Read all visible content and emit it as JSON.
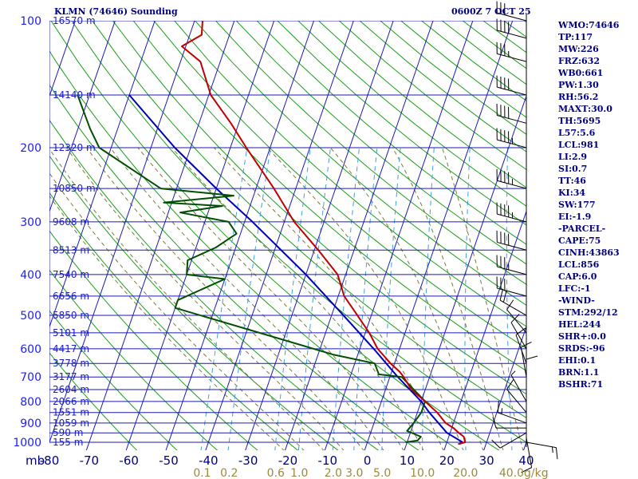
{
  "header": {
    "station": "KLMN (74646) Sounding",
    "valid_time": "0600Z  7 OCT 25"
  },
  "indices": [
    "WMO:74646",
    "TP:117",
    "MW:226",
    "FRZ:632",
    "WB0:661",
    "PW:1.30",
    "RH:56.2",
    "MAXT:30.0",
    "TH:5695",
    "L57:5.6",
    "LCL:981",
    "LI:2.9",
    "SI:0.7",
    "TT:46",
    "KI:34",
    "SW:177",
    "EI:-1.9",
    "-PARCEL-",
    "CAPE:75",
    "CINH:43863",
    "LCL:856",
    "CAP:6.0",
    "LFC:-1",
    "-WIND-",
    "STM:292/12",
    "HEL:244",
    "SHR+:0.0",
    "SRDS:-96",
    "EHI:0.1",
    "BRN:1.1",
    "BSHR:71"
  ],
  "colors": {
    "grid": "#1a1ab4",
    "dry_adiabat": "#1a9e1a",
    "moist_adiabat": "#7a7a3a",
    "mixing_ratio": "#3fa0e0",
    "temperature": "#c00000",
    "dewpoint": "#005000",
    "parcel": "#0000b4",
    "labels": "#000080"
  },
  "chart_data": {
    "type": "skew-t",
    "pressure_unit_label": "mb",
    "p_range": [
      1000,
      100
    ],
    "t_range_at_1000mb": [
      -80,
      40
    ],
    "pressure_levels": [
      100,
      200,
      300,
      400,
      500,
      600,
      700,
      800,
      900,
      1000
    ],
    "height_labels": [
      {
        "p": 100,
        "label": "16570 m"
      },
      {
        "p": 150,
        "label": "14140 m"
      },
      {
        "p": 200,
        "label": "12320 m"
      },
      {
        "p": 250,
        "label": "10850 m"
      },
      {
        "p": 300,
        "label": "9608 m"
      },
      {
        "p": 350,
        "label": "8513 m"
      },
      {
        "p": 400,
        "label": "7540 m"
      },
      {
        "p": 450,
        "label": "6656 m"
      },
      {
        "p": 500,
        "label": "5850 m"
      },
      {
        "p": 550,
        "label": "5101 m"
      },
      {
        "p": 600,
        "label": "4417 m"
      },
      {
        "p": 650,
        "label": "3778 m"
      },
      {
        "p": 700,
        "label": "3177 m"
      },
      {
        "p": 750,
        "label": "2604 m"
      },
      {
        "p": 800,
        "label": "2066 m"
      },
      {
        "p": 850,
        "label": "1551 m"
      },
      {
        "p": 900,
        "label": "1059 m"
      },
      {
        "p": 950,
        "label": "590 m"
      },
      {
        "p": 1000,
        "label": "155 m"
      }
    ],
    "temperature_ticks": [
      -80,
      -70,
      -60,
      -50,
      -40,
      -30,
      -20,
      -10,
      0,
      10,
      20,
      30,
      40
    ],
    "mixing_ratio_ticks": [
      "0.1",
      "0.2",
      "0.6",
      "1.0",
      "2.0",
      "3.0",
      "5.0",
      "10.0",
      "20.0",
      "40.0"
    ],
    "mixing_ratio_unit": "g/kg",
    "temperature": [
      {
        "p": 1010,
        "t": 23.0
      },
      {
        "p": 1000,
        "t": 24.6
      },
      {
        "p": 970,
        "t": 23.8
      },
      {
        "p": 950,
        "t": 22.2
      },
      {
        "p": 925,
        "t": 20.4
      },
      {
        "p": 900,
        "t": 18.0
      },
      {
        "p": 850,
        "t": 15.0
      },
      {
        "p": 800,
        "t": 11.0
      },
      {
        "p": 750,
        "t": 6.5
      },
      {
        "p": 700,
        "t": 3.5
      },
      {
        "p": 680,
        "t": 2.0
      },
      {
        "p": 650,
        "t": -1.0
      },
      {
        "p": 600,
        "t": -5.5
      },
      {
        "p": 550,
        "t": -9.0
      },
      {
        "p": 500,
        "t": -13.5
      },
      {
        "p": 450,
        "t": -18.5
      },
      {
        "p": 400,
        "t": -22.0
      },
      {
        "p": 350,
        "t": -29.0
      },
      {
        "p": 300,
        "t": -37.5
      },
      {
        "p": 250,
        "t": -45.5
      },
      {
        "p": 200,
        "t": -56.0
      },
      {
        "p": 175,
        "t": -62.0
      },
      {
        "p": 150,
        "t": -69.5
      },
      {
        "p": 125,
        "t": -75.0
      },
      {
        "p": 115,
        "t": -81.0
      },
      {
        "p": 108,
        "t": -77.0
      },
      {
        "p": 100,
        "t": -78.0
      }
    ],
    "dewpoint": [
      {
        "p": 1000,
        "t": 9.6
      },
      {
        "p": 990,
        "t": 12.5
      },
      {
        "p": 970,
        "t": 13.0
      },
      {
        "p": 940,
        "t": 9.0
      },
      {
        "p": 900,
        "t": 10.0
      },
      {
        "p": 850,
        "t": 11.0
      },
      {
        "p": 800,
        "t": 11.0
      },
      {
        "p": 700,
        "t": 3.0
      },
      {
        "p": 690,
        "t": -3.0
      },
      {
        "p": 650,
        "t": -5.0
      },
      {
        "p": 620,
        "t": -16.0
      },
      {
        "p": 480,
        "t": -60.0
      },
      {
        "p": 460,
        "t": -60.0
      },
      {
        "p": 410,
        "t": -50.0
      },
      {
        "p": 400,
        "t": -60.0
      },
      {
        "p": 370,
        "t": -61.0
      },
      {
        "p": 345,
        "t": -55.0
      },
      {
        "p": 320,
        "t": -51.0
      },
      {
        "p": 300,
        "t": -54.0
      },
      {
        "p": 285,
        "t": -67.0
      },
      {
        "p": 275,
        "t": -57.0
      },
      {
        "p": 270,
        "t": -72.0
      },
      {
        "p": 260,
        "t": -55.0
      },
      {
        "p": 250,
        "t": -74.0
      },
      {
        "p": 200,
        "t": -93.0
      },
      {
        "p": 180,
        "t": -97.0
      },
      {
        "p": 150,
        "t": -103.0
      }
    ],
    "parcel": [
      {
        "p": 1000,
        "t": 24.0
      },
      {
        "p": 950,
        "t": 19.2
      },
      {
        "p": 900,
        "t": 16.2
      },
      {
        "p": 850,
        "t": 13.0
      },
      {
        "p": 800,
        "t": 10.0
      },
      {
        "p": 700,
        "t": 2.0
      },
      {
        "p": 600,
        "t": -6.5
      },
      {
        "p": 500,
        "t": -17.0
      },
      {
        "p": 400,
        "t": -30.0
      },
      {
        "p": 300,
        "t": -48.0
      },
      {
        "p": 250,
        "t": -60.0
      },
      {
        "p": 200,
        "t": -74.0
      },
      {
        "p": 150,
        "t": -90.0
      }
    ],
    "wind_barbs": [
      {
        "p": 1000,
        "dir": 100,
        "kt": 15
      },
      {
        "p": 975,
        "dir": 170,
        "kt": 10
      },
      {
        "p": 950,
        "dir": 240,
        "kt": 10
      },
      {
        "p": 925,
        "dir": 270,
        "kt": 10
      },
      {
        "p": 900,
        "dir": 290,
        "kt": 15
      },
      {
        "p": 850,
        "dir": 320,
        "kt": 10
      },
      {
        "p": 800,
        "dir": 330,
        "kt": 5
      },
      {
        "p": 750,
        "dir": 0,
        "kt": 10
      },
      {
        "p": 700,
        "dir": 350,
        "kt": 10
      },
      {
        "p": 650,
        "dir": 340,
        "kt": 10
      },
      {
        "p": 600,
        "dir": 330,
        "kt": 10
      },
      {
        "p": 550,
        "dir": 320,
        "kt": 10
      },
      {
        "p": 500,
        "dir": 300,
        "kt": 20
      },
      {
        "p": 450,
        "dir": 285,
        "kt": 30
      },
      {
        "p": 400,
        "dir": 285,
        "kt": 35
      },
      {
        "p": 350,
        "dir": 285,
        "kt": 40
      },
      {
        "p": 300,
        "dir": 285,
        "kt": 45
      },
      {
        "p": 250,
        "dir": 285,
        "kt": 45
      },
      {
        "p": 200,
        "dir": 285,
        "kt": 45
      },
      {
        "p": 175,
        "dir": 285,
        "kt": 40
      },
      {
        "p": 150,
        "dir": 285,
        "kt": 40
      },
      {
        "p": 125,
        "dir": 285,
        "kt": 35
      },
      {
        "p": 110,
        "dir": 285,
        "kt": 40
      },
      {
        "p": 100,
        "dir": 285,
        "kt": 30
      }
    ]
  }
}
